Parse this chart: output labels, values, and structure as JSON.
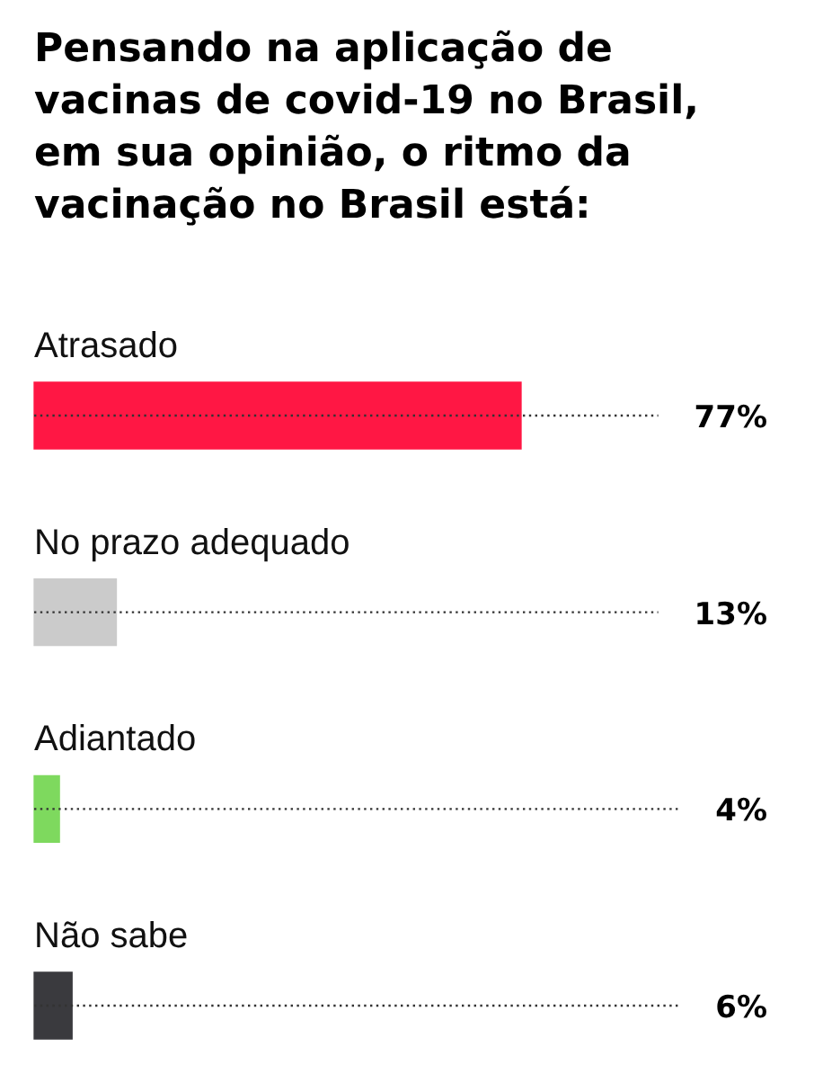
{
  "chart_data": {
    "type": "bar",
    "orientation": "horizontal",
    "title": "Pensando na aplicação de vacinas de covid-19 no Brasil, em sua opinião, o ritmo da vacinação no Brasil está:",
    "categories": [
      "Atrasado",
      "No prazo adequado",
      "Adiantado",
      "Não sabe"
    ],
    "values": [
      77,
      13,
      4,
      6
    ],
    "colors": [
      "#ff1744",
      "#cbcbcb",
      "#7ed95e",
      "#3a3a3e"
    ],
    "value_labels": [
      "77%",
      "13%",
      "4%",
      "6%"
    ],
    "tick_labels": "y"
  }
}
